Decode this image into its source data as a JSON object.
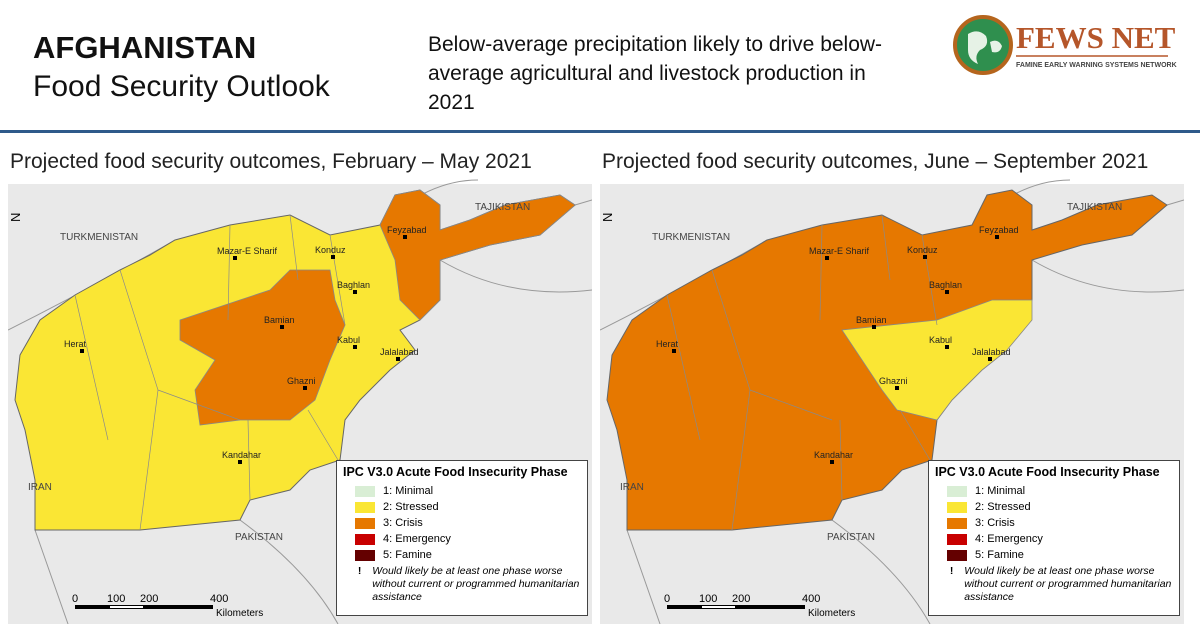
{
  "header": {
    "country": "AFGHANISTAN",
    "title": "Food Security Outlook",
    "summary": "Below-average precipitation likely to drive below-average agricultural and livestock production in 2021",
    "logo": {
      "name": "FEWS NET",
      "tagline": "FAMINE EARLY WARNING SYSTEMS NETWORK"
    }
  },
  "phases": [
    {
      "label": "1: Minimal",
      "color": "#d9eed5"
    },
    {
      "label": "2: Stressed",
      "color": "#fae634"
    },
    {
      "label": "3: Crisis",
      "color": "#e67800"
    },
    {
      "label": "4: Emergency",
      "color": "#c80000"
    },
    {
      "label": "5: Famine",
      "color": "#640000"
    }
  ],
  "legend": {
    "title": "IPC V3.0 Acute Food Insecurity Phase",
    "note_marker": "!",
    "note": "Would likely be at least one phase worse without current or programmed humanitarian assistance"
  },
  "scale": {
    "labels": [
      "0",
      "100",
      "200",
      "400"
    ],
    "unit": "Kilometers"
  },
  "north": "N",
  "countries": [
    "TURKMENISTAN",
    "TAJIKISTAN",
    "IRAN",
    "PAKISTAN"
  ],
  "cities": [
    "Mazar-E Sharif",
    "Konduz",
    "Feyzabad",
    "Baghlan",
    "Bamian",
    "Kabul",
    "Jalalabad",
    "Herat",
    "Ghazni",
    "Kandahar"
  ],
  "maps": [
    {
      "title": "Projected food security outcomes, February – May 2021"
    },
    {
      "title": "Projected food security outcomes, June – September 2021"
    }
  ]
}
